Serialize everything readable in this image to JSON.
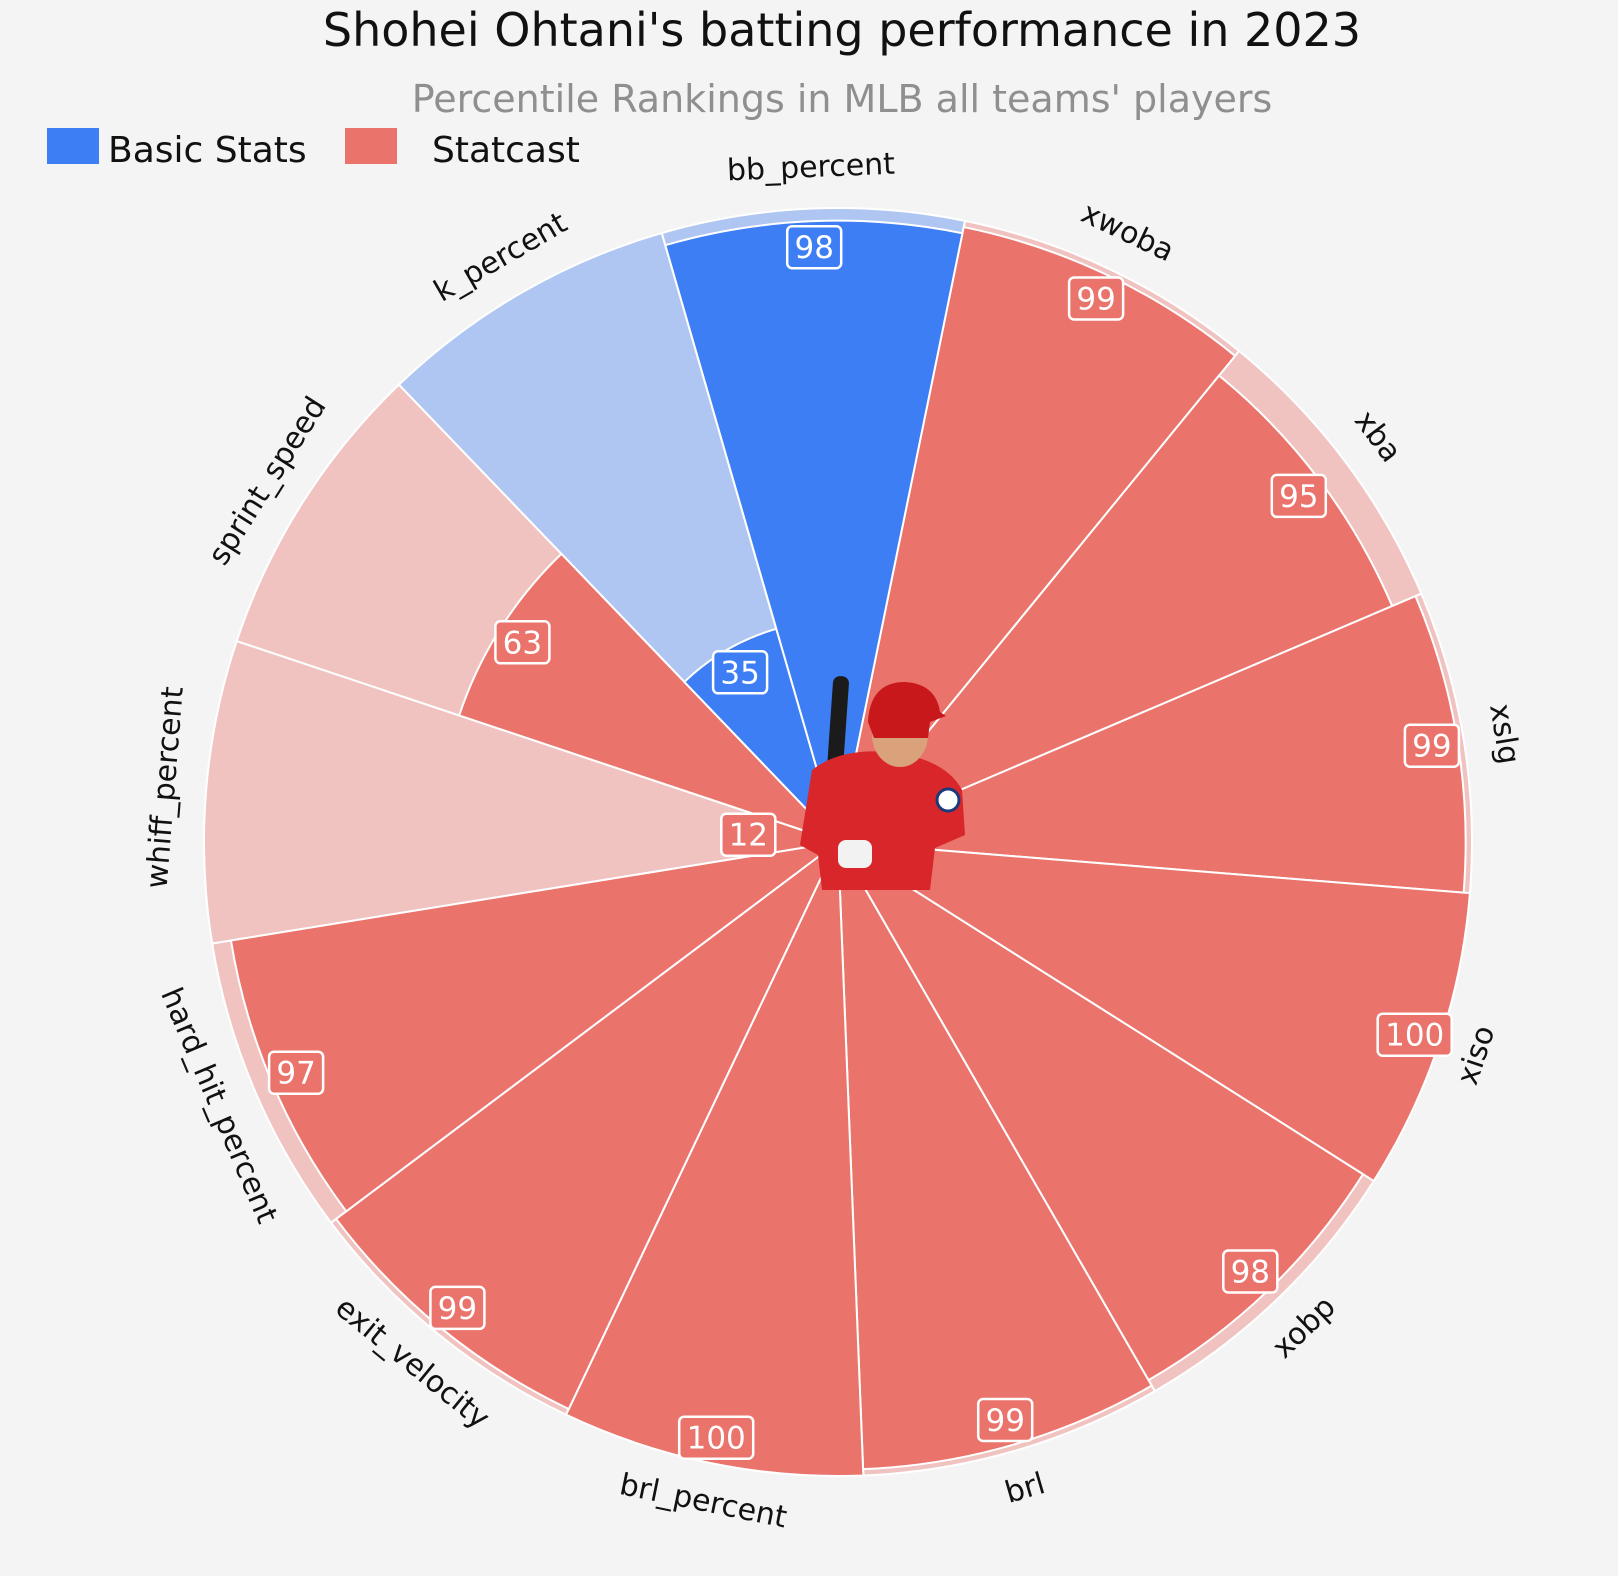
{
  "chart_data": {
    "type": "polar-bar",
    "title": "Shohei Ohtani's batting performance in 2023",
    "subtitle": "Percentile Rankings in MLB all teams' players",
    "legend": {
      "placement": "top-left",
      "entries": [
        {
          "label": "Basic Stats",
          "color": "#3d7ef5"
        },
        {
          "label": "Statcast",
          "color": "#ea736b"
        }
      ]
    },
    "rlim": [
      0,
      100
    ],
    "grid": false,
    "series": [
      {
        "category": "xwoba",
        "value": 99,
        "group": "Statcast"
      },
      {
        "category": "xba",
        "value": 95,
        "group": "Statcast"
      },
      {
        "category": "xslg",
        "value": 99,
        "group": "Statcast"
      },
      {
        "category": "xiso",
        "value": 100,
        "group": "Statcast"
      },
      {
        "category": "xobp",
        "value": 98,
        "group": "Statcast"
      },
      {
        "category": "brl",
        "value": 99,
        "group": "Statcast"
      },
      {
        "category": "brl_percent",
        "value": 100,
        "group": "Statcast"
      },
      {
        "category": "exit_velocity",
        "value": 99,
        "group": "Statcast"
      },
      {
        "category": "hard_hit_percent",
        "value": 97,
        "group": "Statcast"
      },
      {
        "category": "whiff_percent",
        "value": 12,
        "group": "Statcast"
      },
      {
        "category": "sprint_speed",
        "value": 63,
        "group": "Statcast"
      },
      {
        "category": "k_percent",
        "value": 35,
        "group": "Basic Stats"
      },
      {
        "category": "bb_percent",
        "value": 98,
        "group": "Basic Stats"
      }
    ],
    "colors": {
      "Basic Stats": {
        "bar": "#3d7ef5",
        "background": "#b0c6f2"
      },
      "Statcast": {
        "bar": "#ea736b",
        "background": "#f0c3c1"
      },
      "page_background": "#f4f4f4"
    },
    "center_image": "player-photo"
  }
}
